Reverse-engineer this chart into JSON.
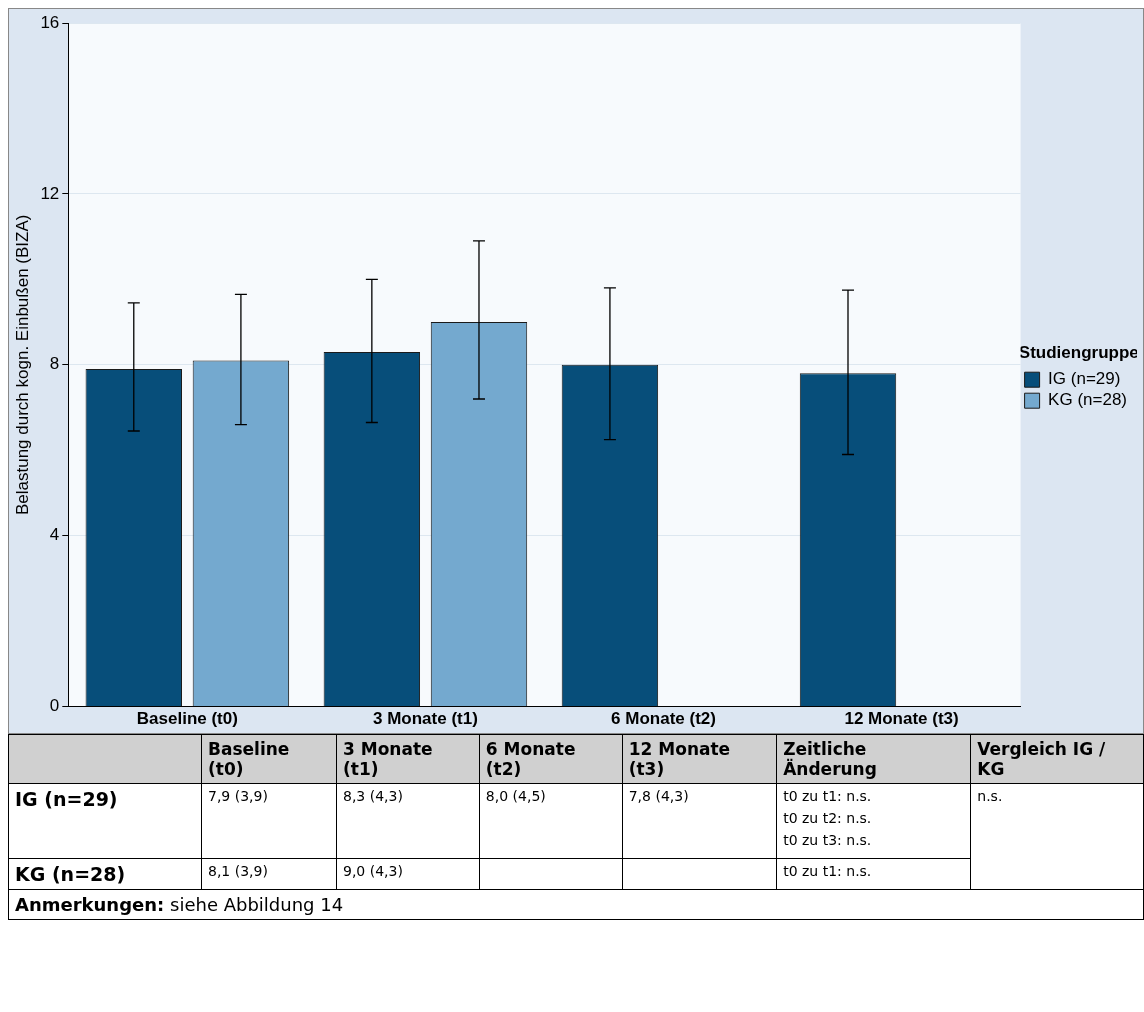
{
  "chart_data": {
    "type": "bar",
    "ylabel": "Belastung durch kogn. Einbußen (BIZA)",
    "legend_title": "Studiengruppe",
    "legend": "right",
    "grid": "y",
    "categories": [
      "Baseline (t0)",
      "3 Monate (t1)",
      "6 Monate (t2)",
      "12 Monate (t3)"
    ],
    "ylim": [
      0,
      16
    ],
    "yticks": [
      0,
      4,
      8,
      12,
      16
    ],
    "series": [
      {
        "name": "IG (n=29)",
        "color": "#074e7a",
        "values": [
          7.9,
          8.3,
          8.0,
          7.8
        ],
        "errors": [
          [
            6.45,
            9.45
          ],
          [
            6.65,
            10.0
          ],
          [
            6.25,
            9.8
          ],
          [
            5.9,
            9.75
          ]
        ]
      },
      {
        "name": "KG (n=28)",
        "color": "#74a9cf",
        "values": [
          8.1,
          9.0,
          null,
          null
        ],
        "errors": [
          [
            6.6,
            9.65
          ],
          [
            7.2,
            10.9
          ],
          null,
          null
        ]
      }
    ],
    "annotations": [
      "Zeitliche Änderung",
      "Vergleich IG / KG",
      "t0 zu t1: n.s.",
      "t0 zu t2: n.s.",
      "t0 zu t3: n.s.",
      "n.s.",
      "t0 zu t1: n.s.",
      "Anmerkungen:",
      "siehe Abbildung 14",
      "7,9 (3,9)",
      "8,3 (4,3)",
      "8,0 (4,5)",
      "7,8 (4,3)",
      "8,1 (3,9)",
      "9,0 (4,3)"
    ]
  }
}
